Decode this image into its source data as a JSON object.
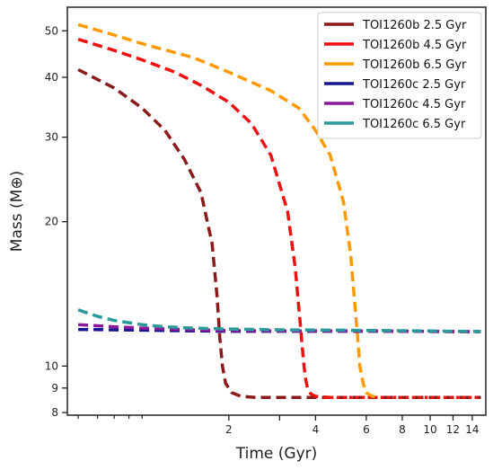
{
  "chart_data": {
    "type": "line",
    "xlabel": "Time (Gyr)",
    "ylabel": "Mass (M⊕)",
    "xscale": "log",
    "yscale": "log",
    "xlim": [
      0.55,
      15.6
    ],
    "ylim": [
      7.9,
      56
    ],
    "x_ticks": [
      2,
      3,
      4,
      6,
      8,
      10,
      12,
      14
    ],
    "x_tick_labels": [
      "2",
      "",
      "4",
      "6",
      "8",
      "10",
      "12",
      "14"
    ],
    "x_minor_ticks": [
      0.6,
      0.7,
      0.8,
      0.9,
      1.0
    ],
    "y_ticks": [
      8,
      9,
      10,
      20,
      30,
      40,
      50
    ],
    "y_tick_labels": [
      "8",
      "9",
      "10",
      "20",
      "30",
      "40",
      "50"
    ],
    "grid": false,
    "legend_position": "top-right",
    "series": [
      {
        "name": "TOI1260b 2.5 Gyr",
        "color": "#8b1a1a",
        "x": [
          0.6,
          0.8,
          1.0,
          1.2,
          1.4,
          1.6,
          1.75,
          1.82,
          1.86,
          1.9,
          1.95,
          2.05,
          2.2,
          2.5,
          3.0,
          5.0,
          8.0,
          12.0,
          15.0
        ],
        "y": [
          41.5,
          38.0,
          34.5,
          31.0,
          27.0,
          23.0,
          18.0,
          14.0,
          11.5,
          10.0,
          9.2,
          8.8,
          8.65,
          8.6,
          8.6,
          8.6,
          8.6,
          8.6,
          8.6
        ]
      },
      {
        "name": "TOI1260b 4.5 Gyr",
        "color": "#ee1111",
        "x": [
          0.6,
          0.8,
          1.0,
          1.3,
          1.6,
          2.0,
          2.4,
          2.8,
          3.2,
          3.4,
          3.55,
          3.62,
          3.68,
          3.75,
          3.85,
          4.0,
          4.5,
          6.0,
          10.0,
          15.0
        ],
        "y": [
          48.0,
          45.5,
          43.5,
          41.0,
          38.5,
          35.5,
          32.0,
          27.5,
          21.0,
          16.0,
          12.0,
          10.5,
          9.5,
          9.0,
          8.75,
          8.65,
          8.6,
          8.6,
          8.6,
          8.6
        ],
        "dash_until_x": 4.5
      },
      {
        "name": "TOI1260b 6.5 Gyr",
        "color": "#ff9900",
        "x": [
          0.6,
          0.8,
          1.0,
          1.5,
          2.0,
          2.8,
          3.5,
          4.0,
          4.5,
          5.0,
          5.3,
          5.5,
          5.6,
          5.7,
          5.85,
          6.0,
          6.3,
          6.6
        ],
        "y": [
          51.5,
          49.0,
          47.0,
          44.0,
          41.0,
          37.5,
          34.5,
          31.0,
          27.5,
          22.0,
          17.0,
          13.0,
          11.5,
          10.0,
          9.2,
          8.8,
          8.65,
          8.6
        ]
      },
      {
        "name": "TOI1260c 2.5 Gyr",
        "color": "#15158f",
        "x": [
          0.6,
          0.8,
          1.0,
          1.5,
          2.0,
          3.0,
          5.0,
          8.0,
          12.0,
          15.0
        ],
        "y": [
          11.92,
          11.9,
          11.88,
          11.84,
          11.82,
          11.82,
          11.82,
          11.82,
          11.8,
          11.8
        ]
      },
      {
        "name": "TOI1260c 4.5 Gyr",
        "color": "#8b1a9b",
        "x": [
          0.6,
          0.8,
          1.0,
          1.5,
          2.0,
          3.0,
          5.0,
          8.0,
          12.0,
          15.0
        ],
        "y": [
          12.2,
          12.08,
          12.0,
          11.9,
          11.86,
          11.84,
          11.84,
          11.82,
          11.8,
          11.8
        ]
      },
      {
        "name": "TOI1260c 6.5 Gyr",
        "color": "#2a9a9a",
        "x": [
          0.6,
          0.7,
          0.8,
          1.0,
          1.2,
          1.5,
          2.0,
          3.0,
          5.0,
          8.0,
          12.0,
          15.0
        ],
        "y": [
          13.1,
          12.7,
          12.45,
          12.2,
          12.08,
          12.0,
          11.95,
          11.9,
          11.88,
          11.85,
          11.82,
          11.8
        ]
      }
    ]
  }
}
